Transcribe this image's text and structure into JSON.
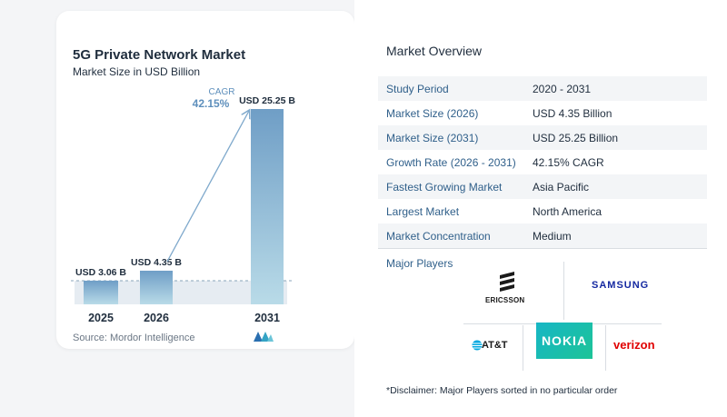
{
  "chart_data": {
    "type": "bar",
    "title": "5G Private Network Market",
    "subtitle": "Market Size in USD Billion",
    "categories": [
      "2025",
      "2026",
      "2031"
    ],
    "values": [
      3.06,
      4.35,
      25.25
    ],
    "value_labels": [
      "USD 3.06 B",
      "USD 4.35 B",
      "USD 25.25 B"
    ],
    "unit": "USD Billion",
    "cagr_label": "CAGR",
    "cagr_value": "42.15%",
    "colors": {
      "bar_top": "#6f9ec6",
      "bar_bottom": "#b9dbe8",
      "cagr": "#5e8fbc",
      "baseline_fill": "#e6ecf2"
    }
  },
  "source": "Source:  Mordor Intelligence",
  "overview": {
    "title": "Market Overview",
    "rows": [
      {
        "key": "Study Period",
        "value": "2020 - 2031"
      },
      {
        "key": "Market Size (2026)",
        "value": "USD 4.35 Billion"
      },
      {
        "key": "Market Size (2031)",
        "value": "USD 25.25 Billion"
      },
      {
        "key": "Growth Rate (2026 - 2031)",
        "value": "42.15% CAGR"
      },
      {
        "key": "Fastest Growing Market",
        "value": "Asia Pacific"
      },
      {
        "key": "Largest Market",
        "value": "North America"
      },
      {
        "key": "Market Concentration",
        "value": "Medium"
      }
    ]
  },
  "players": {
    "title": "Major Players",
    "names": [
      "ERICSSON",
      "SAMSUNG",
      "NOKIA",
      "AT&T",
      "verizon"
    ]
  },
  "disclaimer": "*Disclaimer: Major Players sorted in no particular order"
}
